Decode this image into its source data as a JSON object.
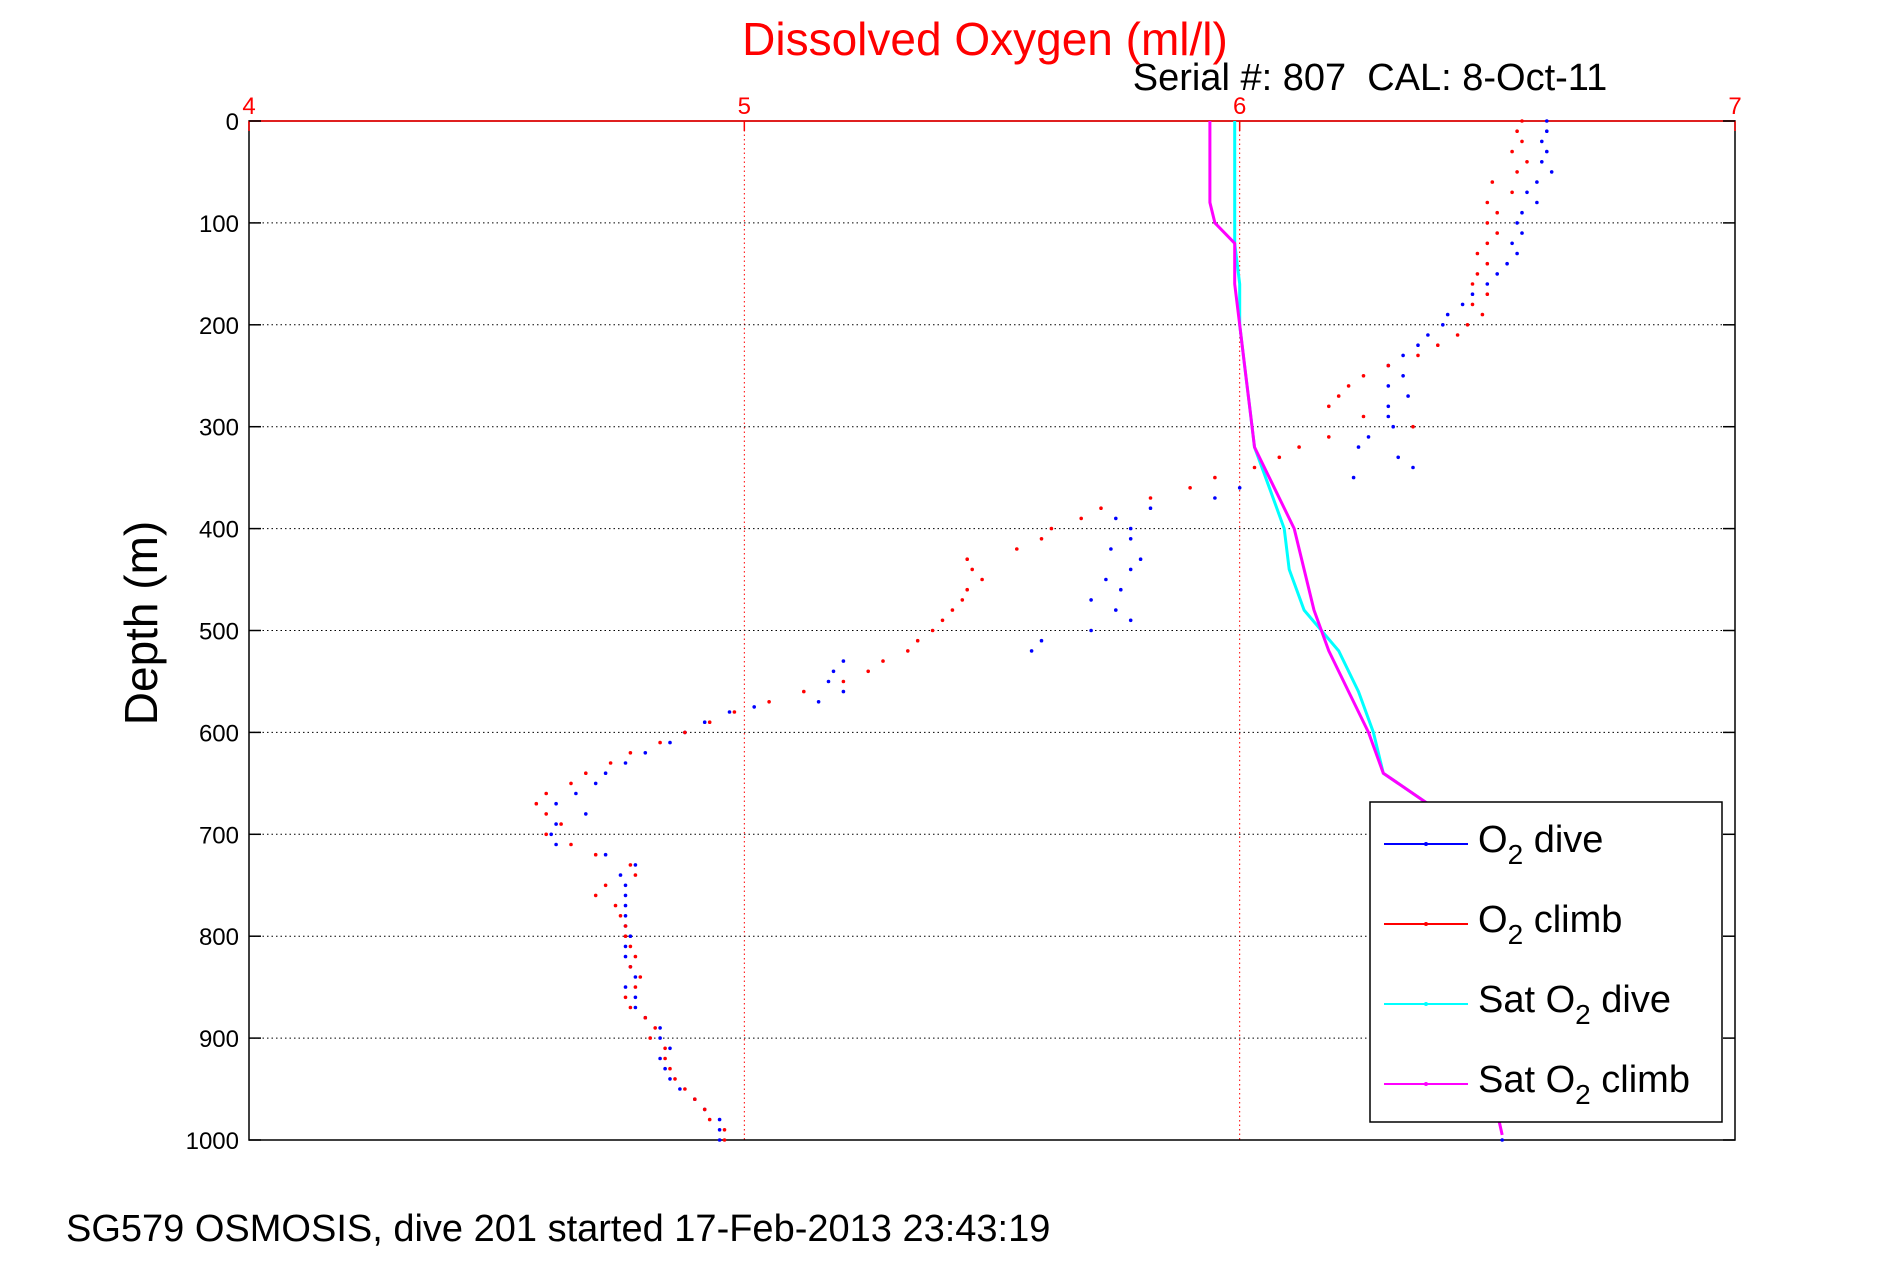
{
  "chart_data": {
    "type": "scatter",
    "title": "Dissolved Oxygen (ml/l)",
    "subtitle": "Serial #: 807  CAL: 8-Oct-11",
    "ylabel": "Depth (m)",
    "xlabel": "",
    "xlim": [
      4,
      7
    ],
    "ylim": [
      0,
      1000
    ],
    "y_reversed": true,
    "x_axis_position": "top",
    "grid": true,
    "x_ticks": [
      "4",
      "5",
      "6",
      "7"
    ],
    "y_ticks": [
      "0",
      "100",
      "200",
      "300",
      "400",
      "500",
      "600",
      "700",
      "800",
      "900",
      "1000"
    ],
    "colors": {
      "title": "#ff0000",
      "x_ticks": "#ff0000",
      "x_grid": "#ff0000",
      "y_grid": "#000000"
    },
    "legend": {
      "position": "bottom-right",
      "entries": [
        {
          "base": "O",
          "sub": "2",
          "suffix": " dive",
          "color": "#0000ff"
        },
        {
          "base": "O",
          "sub": "2",
          "suffix": " climb",
          "color": "#ff0000"
        },
        {
          "base": "Sat O",
          "sub": "2",
          "suffix": " dive",
          "color": "#00ffff"
        },
        {
          "base": "Sat O",
          "sub": "2",
          "suffix": " climb",
          "color": "#ff00ff"
        }
      ]
    },
    "series": [
      {
        "label": "O2 dive",
        "style": "dots",
        "color": "#0000ff",
        "points": [
          [
            6.62,
            0
          ],
          [
            6.62,
            10
          ],
          [
            6.61,
            20
          ],
          [
            6.62,
            30
          ],
          [
            6.61,
            40
          ],
          [
            6.63,
            50
          ],
          [
            6.6,
            60
          ],
          [
            6.58,
            70
          ],
          [
            6.6,
            80
          ],
          [
            6.57,
            90
          ],
          [
            6.56,
            100
          ],
          [
            6.57,
            110
          ],
          [
            6.55,
            120
          ],
          [
            6.56,
            130
          ],
          [
            6.54,
            140
          ],
          [
            6.52,
            150
          ],
          [
            6.5,
            160
          ],
          [
            6.47,
            170
          ],
          [
            6.45,
            180
          ],
          [
            6.42,
            190
          ],
          [
            6.41,
            200
          ],
          [
            6.38,
            210
          ],
          [
            6.36,
            220
          ],
          [
            6.33,
            230
          ],
          [
            6.3,
            240
          ],
          [
            6.33,
            250
          ],
          [
            6.3,
            260
          ],
          [
            6.34,
            270
          ],
          [
            6.3,
            280
          ],
          [
            6.3,
            290
          ],
          [
            6.31,
            300
          ],
          [
            6.26,
            310
          ],
          [
            6.24,
            320
          ],
          [
            6.32,
            330
          ],
          [
            6.35,
            340
          ],
          [
            6.23,
            350
          ],
          [
            6.0,
            360
          ],
          [
            5.95,
            370
          ],
          [
            5.82,
            380
          ],
          [
            5.75,
            390
          ],
          [
            5.78,
            400
          ],
          [
            5.78,
            410
          ],
          [
            5.74,
            420
          ],
          [
            5.8,
            430
          ],
          [
            5.78,
            440
          ],
          [
            5.73,
            450
          ],
          [
            5.76,
            460
          ],
          [
            5.7,
            470
          ],
          [
            5.75,
            480
          ],
          [
            5.78,
            490
          ],
          [
            5.7,
            500
          ],
          [
            5.6,
            510
          ],
          [
            5.58,
            520
          ],
          [
            5.2,
            530
          ],
          [
            5.18,
            540
          ],
          [
            5.17,
            550
          ],
          [
            5.2,
            560
          ],
          [
            5.15,
            570
          ],
          [
            5.02,
            575
          ],
          [
            4.97,
            580
          ],
          [
            4.92,
            590
          ],
          [
            4.88,
            600
          ],
          [
            4.85,
            610
          ],
          [
            4.8,
            620
          ],
          [
            4.76,
            630
          ],
          [
            4.72,
            640
          ],
          [
            4.7,
            650
          ],
          [
            4.66,
            660
          ],
          [
            4.62,
            670
          ],
          [
            4.68,
            680
          ],
          [
            4.62,
            690
          ],
          [
            4.61,
            700
          ],
          [
            4.62,
            710
          ],
          [
            4.72,
            720
          ],
          [
            4.78,
            730
          ],
          [
            4.75,
            740
          ],
          [
            4.76,
            750
          ],
          [
            4.76,
            760
          ],
          [
            4.76,
            770
          ],
          [
            4.76,
            780
          ],
          [
            4.76,
            790
          ],
          [
            4.77,
            800
          ],
          [
            4.76,
            810
          ],
          [
            4.76,
            820
          ],
          [
            4.77,
            830
          ],
          [
            4.78,
            840
          ],
          [
            4.76,
            850
          ],
          [
            4.78,
            860
          ],
          [
            4.78,
            870
          ],
          [
            4.8,
            880
          ],
          [
            4.83,
            890
          ],
          [
            4.83,
            900
          ],
          [
            4.85,
            910
          ],
          [
            4.83,
            920
          ],
          [
            4.84,
            930
          ],
          [
            4.85,
            940
          ],
          [
            4.87,
            950
          ],
          [
            4.9,
            960
          ],
          [
            4.92,
            970
          ],
          [
            4.95,
            980
          ],
          [
            4.95,
            990
          ],
          [
            4.95,
            1000
          ],
          [
            6.53,
            1000
          ]
        ]
      },
      {
        "label": "O2 climb",
        "style": "dots",
        "color": "#ff0000",
        "points": [
          [
            6.57,
            0
          ],
          [
            6.56,
            10
          ],
          [
            6.57,
            20
          ],
          [
            6.55,
            30
          ],
          [
            6.58,
            40
          ],
          [
            6.56,
            50
          ],
          [
            6.51,
            60
          ],
          [
            6.55,
            70
          ],
          [
            6.5,
            80
          ],
          [
            6.52,
            90
          ],
          [
            6.5,
            100
          ],
          [
            6.52,
            110
          ],
          [
            6.5,
            120
          ],
          [
            6.48,
            130
          ],
          [
            6.5,
            140
          ],
          [
            6.48,
            150
          ],
          [
            6.47,
            160
          ],
          [
            6.5,
            170
          ],
          [
            6.47,
            180
          ],
          [
            6.49,
            190
          ],
          [
            6.46,
            200
          ],
          [
            6.44,
            210
          ],
          [
            6.4,
            220
          ],
          [
            6.36,
            230
          ],
          [
            6.3,
            240
          ],
          [
            6.25,
            250
          ],
          [
            6.22,
            260
          ],
          [
            6.2,
            270
          ],
          [
            6.18,
            280
          ],
          [
            6.25,
            290
          ],
          [
            6.35,
            300
          ],
          [
            6.18,
            310
          ],
          [
            6.12,
            320
          ],
          [
            6.08,
            330
          ],
          [
            6.03,
            340
          ],
          [
            5.95,
            350
          ],
          [
            5.9,
            360
          ],
          [
            5.82,
            370
          ],
          [
            5.72,
            380
          ],
          [
            5.68,
            390
          ],
          [
            5.62,
            400
          ],
          [
            5.6,
            410
          ],
          [
            5.55,
            420
          ],
          [
            5.45,
            430
          ],
          [
            5.46,
            440
          ],
          [
            5.48,
            450
          ],
          [
            5.45,
            460
          ],
          [
            5.44,
            470
          ],
          [
            5.42,
            480
          ],
          [
            5.4,
            490
          ],
          [
            5.38,
            500
          ],
          [
            5.35,
            510
          ],
          [
            5.33,
            520
          ],
          [
            5.28,
            530
          ],
          [
            5.25,
            540
          ],
          [
            5.2,
            550
          ],
          [
            5.12,
            560
          ],
          [
            5.05,
            570
          ],
          [
            4.98,
            580
          ],
          [
            4.93,
            590
          ],
          [
            4.88,
            600
          ],
          [
            4.83,
            610
          ],
          [
            4.77,
            620
          ],
          [
            4.73,
            630
          ],
          [
            4.68,
            640
          ],
          [
            4.65,
            650
          ],
          [
            4.6,
            660
          ],
          [
            4.58,
            670
          ],
          [
            4.6,
            680
          ],
          [
            4.63,
            690
          ],
          [
            4.6,
            700
          ],
          [
            4.65,
            710
          ],
          [
            4.7,
            720
          ],
          [
            4.77,
            730
          ],
          [
            4.78,
            740
          ],
          [
            4.72,
            750
          ],
          [
            4.7,
            760
          ],
          [
            4.74,
            770
          ],
          [
            4.75,
            780
          ],
          [
            4.76,
            790
          ],
          [
            4.76,
            800
          ],
          [
            4.77,
            810
          ],
          [
            4.78,
            820
          ],
          [
            4.77,
            830
          ],
          [
            4.79,
            840
          ],
          [
            4.78,
            850
          ],
          [
            4.76,
            860
          ],
          [
            4.77,
            870
          ],
          [
            4.8,
            880
          ],
          [
            4.82,
            890
          ],
          [
            4.81,
            900
          ],
          [
            4.84,
            910
          ],
          [
            4.84,
            920
          ],
          [
            4.85,
            930
          ],
          [
            4.86,
            940
          ],
          [
            4.88,
            950
          ],
          [
            4.9,
            960
          ],
          [
            4.92,
            970
          ],
          [
            4.93,
            980
          ],
          [
            4.96,
            990
          ],
          [
            4.96,
            1000
          ]
        ]
      },
      {
        "label": "Sat O2 dive",
        "style": "line",
        "color": "#00ffff",
        "points": [
          [
            5.99,
            0
          ],
          [
            5.99,
            40
          ],
          [
            5.99,
            80
          ],
          [
            5.99,
            120
          ],
          [
            6.0,
            160
          ],
          [
            6.0,
            200
          ],
          [
            6.01,
            240
          ],
          [
            6.02,
            280
          ],
          [
            6.03,
            320
          ],
          [
            6.06,
            360
          ],
          [
            6.09,
            400
          ],
          [
            6.1,
            440
          ],
          [
            6.13,
            480
          ],
          [
            6.2,
            520
          ],
          [
            6.24,
            560
          ],
          [
            6.27,
            600
          ],
          [
            6.29,
            640
          ],
          [
            6.38,
            670
          ]
        ]
      },
      {
        "label": "Sat O2 climb",
        "style": "line",
        "color": "#ff00ff",
        "points": [
          [
            5.94,
            0
          ],
          [
            5.94,
            40
          ],
          [
            5.94,
            80
          ],
          [
            5.95,
            100
          ],
          [
            5.99,
            120
          ],
          [
            5.99,
            160
          ],
          [
            6.0,
            200
          ],
          [
            6.01,
            240
          ],
          [
            6.02,
            280
          ],
          [
            6.03,
            320
          ],
          [
            6.07,
            360
          ],
          [
            6.11,
            400
          ],
          [
            6.13,
            440
          ],
          [
            6.15,
            480
          ],
          [
            6.18,
            520
          ],
          [
            6.22,
            560
          ],
          [
            6.26,
            600
          ],
          [
            6.29,
            640
          ],
          [
            6.38,
            670
          ],
          [
            6.53,
            995
          ]
        ]
      }
    ]
  },
  "footer": "SG579 OSMOSIS, dive 201 started 17-Feb-2013 23:43:19"
}
